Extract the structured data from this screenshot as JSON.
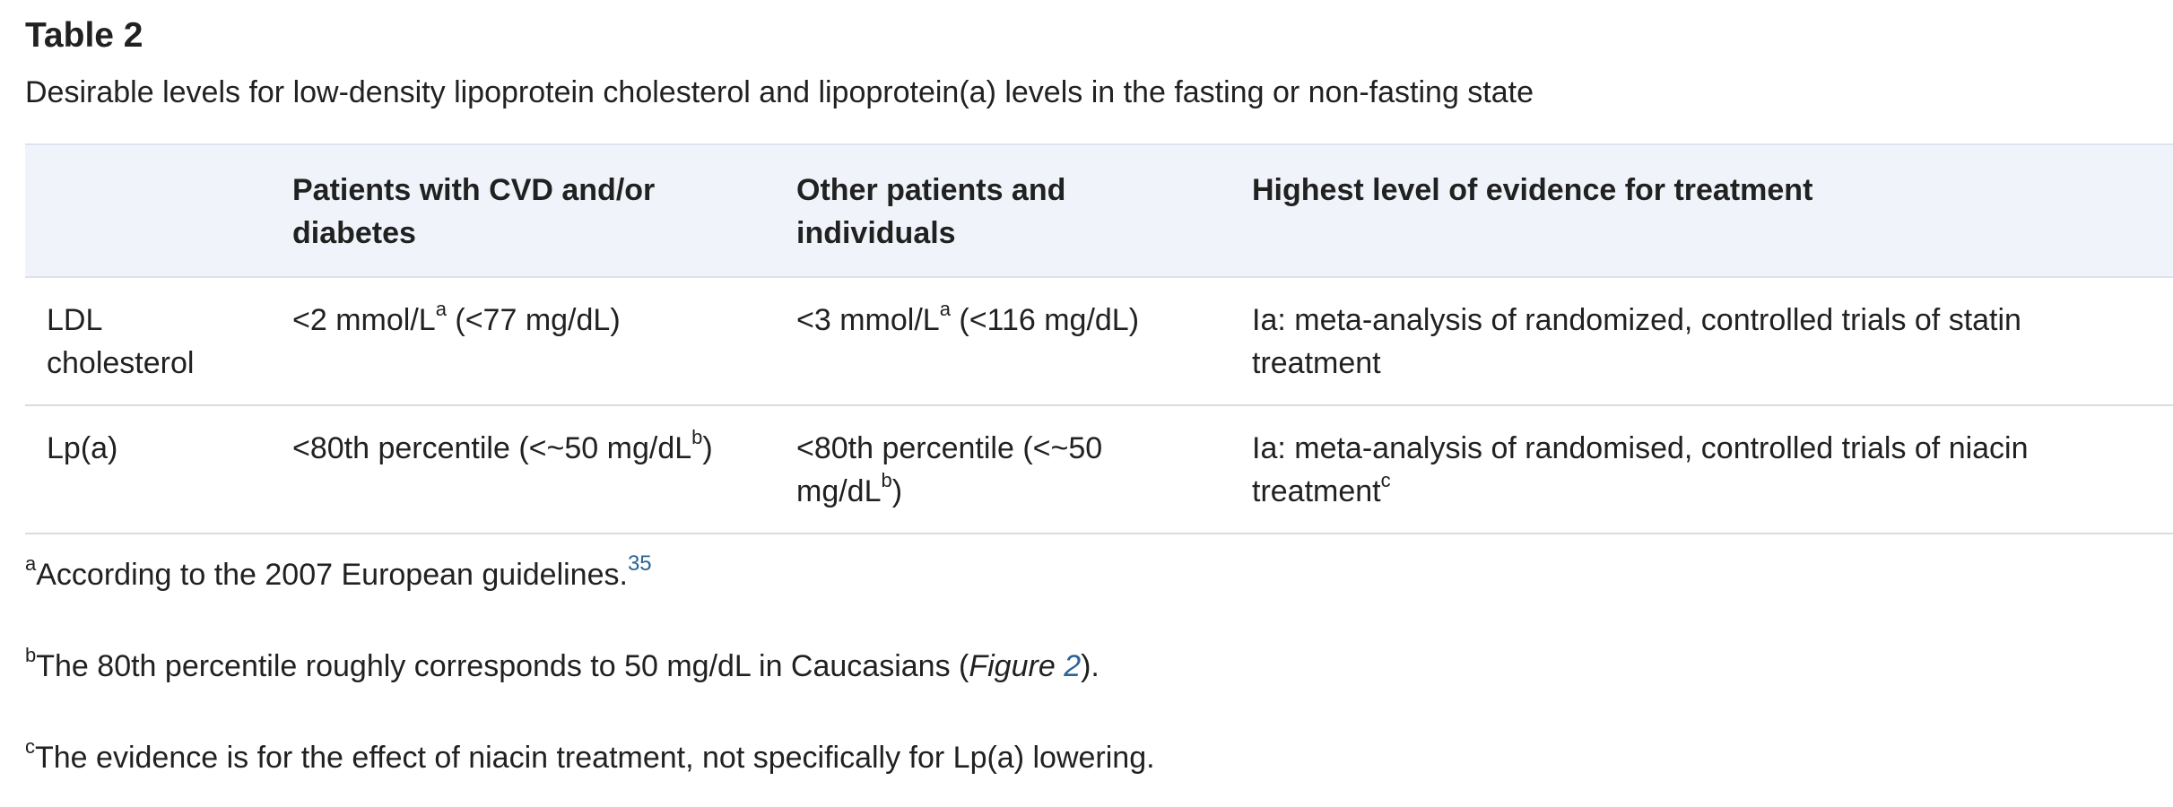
{
  "table": {
    "title": "Table 2",
    "caption": "Desirable levels for low-density lipoprotein cholesterol and lipoprotein(a) levels in the fasting or non-fasting state",
    "headers": [
      "",
      "Patients with CVD and/or diabetes",
      "Other patients and individuals",
      "Highest level of evidence for treatment"
    ],
    "rows": [
      {
        "label": "LDL cholesterol",
        "cvd_main": "<2 mmol/L",
        "cvd_sup": "a",
        "cvd_rest": " (<77 mg/dL)",
        "other_main": "<3 mmol/L",
        "other_sup": "a",
        "other_rest": " (<116 mg/dL)",
        "evidence_main": "Ia: meta-analysis of randomized, controlled trials of statin treatment",
        "evidence_sup": ""
      },
      {
        "label": "Lp(a)",
        "cvd_main": "<80th percentile (<~50 mg/dL",
        "cvd_sup": "b",
        "cvd_rest": ")",
        "other_main": "<80th percentile (<~50 mg/dL",
        "other_sup": "b",
        "other_rest": ")",
        "evidence_main": "Ia: meta-analysis of randomised, controlled trials of niacin treatment",
        "evidence_sup": "c"
      }
    ]
  },
  "footnotes": [
    {
      "marker": "a",
      "text": "According to the 2007 European guidelines.",
      "ref": "35"
    },
    {
      "marker": "b",
      "text_before": "The 80th percentile roughly corresponds to 50 mg/dL in Caucasians (",
      "fig_label": "Figure",
      "fig_number": "2",
      "text_after": ")."
    },
    {
      "marker": "c",
      "text": "The evidence is for the effect of niacin treatment, not specifically for Lp(a) lowering."
    }
  ]
}
